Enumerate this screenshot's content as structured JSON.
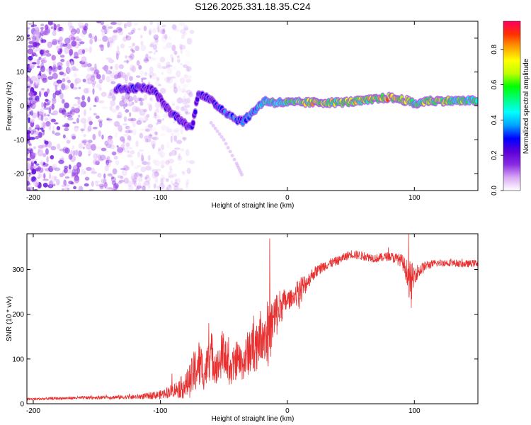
{
  "chart_data": [
    {
      "type": "heatmap",
      "title": "S126.2025.331.18.35.C24",
      "xlabel": "Height of straight line (km)",
      "ylabel": "Frequency (Hz)",
      "xlim": [
        -205,
        150
      ],
      "ylim": [
        -25,
        25
      ],
      "xticks": [
        -200,
        -100,
        0,
        100
      ],
      "yticks": [
        -20,
        -10,
        0,
        10,
        20
      ],
      "colorbar": {
        "label": "Normalized spectral amplitude",
        "range": [
          0.0,
          0.96
        ],
        "ticks": [
          0.0,
          0.2,
          0.4,
          0.6,
          0.8
        ],
        "colors": [
          "#ffffff",
          "#d9a8f5",
          "#8a2be2",
          "#5a00d8",
          "#0000ff",
          "#00a0ff",
          "#00ffff",
          "#00ff80",
          "#00ff00",
          "#c0ff00",
          "#ffff00",
          "#ffa000",
          "#ff3000",
          "#ff0060"
        ]
      },
      "ridge": {
        "name": "spectral line",
        "x": [
          -135,
          -125,
          -115,
          -105,
          -98,
          -92,
          -86,
          -80,
          -75,
          -70,
          -62,
          -55,
          -48,
          -40,
          -35,
          -30,
          -25,
          -18,
          -10,
          0,
          20,
          40,
          60,
          80,
          95,
          100,
          105,
          110,
          130,
          150
        ],
        "y": [
          5,
          5,
          5.5,
          4.5,
          1,
          -2,
          -3.5,
          -5.5,
          -6.5,
          4,
          2,
          0,
          -2,
          -4,
          -4.5,
          -3,
          -1,
          1.5,
          1,
          1,
          1,
          1,
          1.5,
          2.5,
          1.5,
          0.5,
          1,
          1.5,
          1.5,
          1.5
        ],
        "amplitude": [
          0.3,
          0.35,
          0.3,
          0.3,
          0.25,
          0.25,
          0.3,
          0.25,
          0.3,
          0.35,
          0.3,
          0.35,
          0.4,
          0.45,
          0.4,
          0.45,
          0.5,
          0.55,
          0.6,
          0.65,
          0.85,
          0.75,
          0.8,
          0.9,
          0.9,
          0.6,
          0.7,
          0.85,
          0.7,
          0.6
        ]
      },
      "noise_extent_x": [
        -205,
        -75
      ],
      "secondary_track": {
        "x": [
          -60,
          -50,
          -40,
          -35
        ],
        "y": [
          -5,
          -10,
          -17,
          -21
        ]
      }
    },
    {
      "type": "line",
      "xlabel": "Height of straight line (km)",
      "ylabel": "SNR (10 * v/v)",
      "xlim": [
        -205,
        150
      ],
      "ylim": [
        0,
        380
      ],
      "xticks": [
        -200,
        -100,
        0,
        100
      ],
      "yticks": [
        0,
        100,
        200,
        300
      ],
      "series": [
        {
          "name": "SNR",
          "color": "#e83030",
          "envelope_x": [
            -205,
            -180,
            -150,
            -120,
            -100,
            -90,
            -80,
            -75,
            -70,
            -65,
            -60,
            -55,
            -50,
            -45,
            -40,
            -35,
            -30,
            -25,
            -20,
            -15,
            -10,
            -5,
            0,
            5,
            10,
            15,
            20,
            30,
            40,
            50,
            60,
            70,
            80,
            90,
            95,
            97,
            100,
            110,
            120,
            130,
            140,
            150
          ],
          "envelope_y": [
            10,
            12,
            14,
            15,
            20,
            30,
            40,
            60,
            90,
            70,
            110,
            80,
            120,
            70,
            100,
            90,
            120,
            130,
            160,
            150,
            190,
            220,
            230,
            240,
            250,
            270,
            290,
            310,
            320,
            335,
            330,
            325,
            330,
            320,
            290,
            260,
            290,
            310,
            315,
            315,
            312,
            315
          ],
          "noise": [
            3,
            3,
            4,
            5,
            10,
            15,
            30,
            45,
            60,
            40,
            55,
            40,
            60,
            35,
            45,
            40,
            55,
            60,
            60,
            70,
            60,
            40,
            25,
            15,
            40,
            20,
            15,
            12,
            10,
            10,
            10,
            10,
            10,
            15,
            30,
            60,
            20,
            10,
            8,
            8,
            8,
            8
          ]
        }
      ]
    }
  ]
}
